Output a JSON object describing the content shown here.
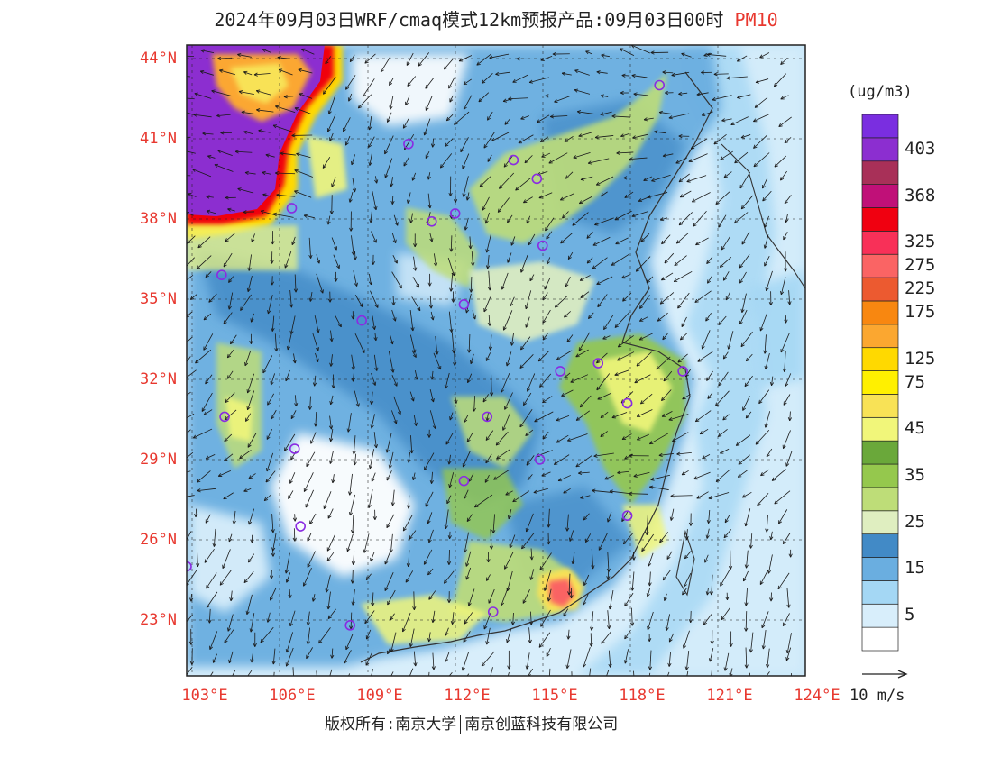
{
  "title": {
    "text": "2024年09月03日WRF/cmaq模式12km预报产品:09月03日00时",
    "pollutant": "PM10"
  },
  "map": {
    "lat_labels": [
      "44°N",
      "41°N",
      "38°N",
      "35°N",
      "32°N",
      "29°N",
      "26°N",
      "23°N"
    ],
    "lon_labels": [
      "103°E",
      "106°E",
      "109°E",
      "112°E",
      "115°E",
      "118°E",
      "121°E",
      "124°E"
    ],
    "stations": [
      {
        "lon": 119.0,
        "lat": 43.0
      },
      {
        "lon": 110.4,
        "lat": 40.8
      },
      {
        "lon": 114.0,
        "lat": 40.2
      },
      {
        "lon": 114.8,
        "lat": 39.5
      },
      {
        "lon": 106.4,
        "lat": 38.4
      },
      {
        "lon": 111.2,
        "lat": 37.9
      },
      {
        "lon": 112.0,
        "lat": 38.2
      },
      {
        "lon": 115.0,
        "lat": 37.0
      },
      {
        "lon": 104.0,
        "lat": 35.9
      },
      {
        "lon": 112.3,
        "lat": 34.8
      },
      {
        "lon": 108.8,
        "lat": 34.2
      },
      {
        "lon": 115.6,
        "lat": 32.3
      },
      {
        "lon": 116.9,
        "lat": 32.6
      },
      {
        "lon": 119.8,
        "lat": 32.3
      },
      {
        "lon": 104.1,
        "lat": 30.6
      },
      {
        "lon": 113.1,
        "lat": 30.6
      },
      {
        "lon": 117.9,
        "lat": 31.1
      },
      {
        "lon": 106.5,
        "lat": 29.4
      },
      {
        "lon": 114.9,
        "lat": 29.0
      },
      {
        "lon": 112.3,
        "lat": 28.2
      },
      {
        "lon": 106.7,
        "lat": 26.5
      },
      {
        "lon": 117.9,
        "lat": 26.9
      },
      {
        "lon": 102.8,
        "lat": 25.0
      },
      {
        "lon": 108.4,
        "lat": 22.8
      },
      {
        "lon": 113.3,
        "lat": 23.3
      }
    ]
  },
  "legend": {
    "unit": "(ug/m3)",
    "colors": [
      "#ffffff",
      "#d8eefb",
      "#a4d7f4",
      "#6aaee0",
      "#428ac6",
      "#dfeec0",
      "#bedd78",
      "#95c84d",
      "#6aa83a",
      "#f1f67a",
      "#f8e256",
      "#fff000",
      "#ffd900",
      "#fba730",
      "#f88710",
      "#ec5a30",
      "#fa6464",
      "#f83058",
      "#f00010",
      "#c01078",
      "#a83058",
      "#8c2ed0",
      "#7a2ee0"
    ],
    "labels": [
      "5",
      "15",
      "25",
      "35",
      "45",
      "75",
      "125",
      "175",
      "225",
      "275",
      "325",
      "368",
      "403"
    ],
    "label_colors": [
      1,
      3,
      5,
      7,
      9,
      11,
      12,
      14,
      15,
      16,
      17,
      19,
      21
    ],
    "wind_ref": "10 m/s"
  },
  "footer": {
    "copyright_left": "版权所有:南京大学",
    "copyright_right": "南京创蓝科技有限公司"
  }
}
